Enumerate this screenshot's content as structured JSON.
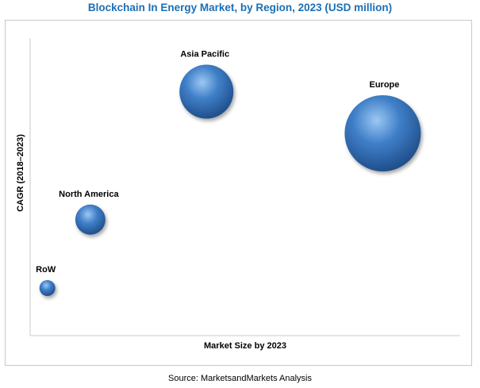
{
  "title": "Blockchain In Energy Market, by Region, 2023 (USD million)",
  "source": "Source: MarketsandMarkets Analysis",
  "colors": {
    "title": "#1b6fb5",
    "bubble_dark": "#1f4e8a",
    "bubble_mid": "#3f7fc8",
    "bubble_light": "#9cc8f3"
  },
  "chart_data": {
    "type": "scatter",
    "title": "Blockchain In Energy Market, by Region, 2023 (USD million)",
    "xlabel": "Market Size by 2023",
    "ylabel": "CAGR (2018–2023)",
    "xlim": [
      0,
      100
    ],
    "ylim": [
      0,
      100
    ],
    "grid": false,
    "legend": "none",
    "points": [
      {
        "label": "Asia Pacific",
        "x": 41,
        "y": 82,
        "size": 34
      },
      {
        "label": "Europe",
        "x": 82,
        "y": 68,
        "size": 48
      },
      {
        "label": "North America",
        "x": 14,
        "y": 39,
        "size": 19
      },
      {
        "label": "RoW",
        "x": 4,
        "y": 16,
        "size": 10
      }
    ]
  }
}
